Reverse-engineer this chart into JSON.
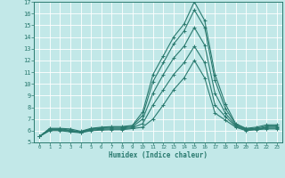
{
  "title": "",
  "xlabel": "Humidex (Indice chaleur)",
  "bg_color": "#c2e8e8",
  "grid_color": "#ffffff",
  "line_color": "#2a7a6f",
  "xlim": [
    -0.5,
    23.5
  ],
  "ylim": [
    5,
    17
  ],
  "xticks": [
    0,
    1,
    2,
    3,
    4,
    5,
    6,
    7,
    8,
    9,
    10,
    11,
    12,
    13,
    14,
    15,
    16,
    17,
    18,
    19,
    20,
    21,
    22,
    23
  ],
  "yticks": [
    5,
    6,
    7,
    8,
    9,
    10,
    11,
    12,
    13,
    14,
    15,
    16,
    17
  ],
  "series": [
    [
      5.5,
      6.2,
      6.2,
      6.15,
      5.95,
      6.2,
      6.3,
      6.35,
      6.35,
      6.45,
      7.6,
      10.8,
      12.4,
      14.0,
      15.1,
      17.0,
      15.4,
      10.8,
      8.3,
      6.6,
      6.2,
      6.3,
      6.5,
      6.5
    ],
    [
      5.5,
      6.15,
      6.15,
      6.05,
      5.9,
      6.15,
      6.25,
      6.3,
      6.3,
      6.4,
      7.3,
      10.2,
      11.8,
      13.4,
      14.5,
      16.3,
      14.8,
      10.3,
      7.9,
      6.55,
      6.15,
      6.2,
      6.4,
      6.4
    ],
    [
      5.5,
      6.1,
      6.1,
      6.0,
      5.88,
      6.1,
      6.2,
      6.22,
      6.22,
      6.32,
      7.0,
      9.2,
      10.8,
      12.2,
      13.2,
      14.8,
      13.3,
      9.2,
      7.5,
      6.45,
      6.1,
      6.15,
      6.3,
      6.3
    ],
    [
      5.5,
      6.05,
      6.05,
      5.95,
      5.85,
      6.05,
      6.12,
      6.15,
      6.15,
      6.25,
      6.6,
      8.2,
      9.5,
      10.8,
      11.8,
      13.2,
      11.8,
      8.2,
      7.2,
      6.38,
      6.05,
      6.12,
      6.22,
      6.22
    ],
    [
      5.5,
      6.0,
      6.0,
      5.9,
      5.82,
      6.0,
      6.05,
      6.08,
      6.08,
      6.18,
      6.3,
      7.0,
      8.2,
      9.5,
      10.5,
      12.0,
      10.5,
      7.5,
      6.9,
      6.3,
      6.0,
      6.08,
      6.15,
      6.15
    ]
  ]
}
